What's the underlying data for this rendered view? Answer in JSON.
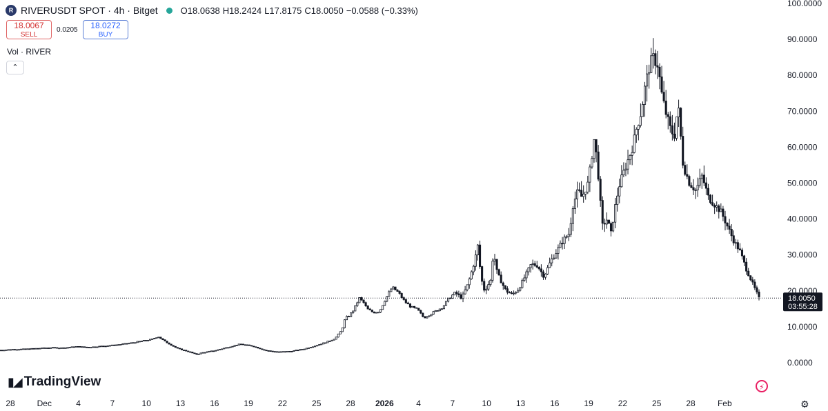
{
  "header": {
    "symbol": "RIVERUSDT SPOT · 4h · Bitget",
    "symbol_icon": "River-coin-icon",
    "status_color": "#26a69a",
    "open_label": "O",
    "open": "18.0638",
    "high_label": "H",
    "high": "18.2424",
    "low_label": "L",
    "low": "17.8175",
    "close_label": "C",
    "close": "18.0050",
    "change": "−0.0588 (−0.33%)"
  },
  "trade": {
    "sell_price": "18.0067",
    "sell_label": "SELL",
    "spread": "0.0205",
    "buy_price": "18.0272",
    "buy_label": "BUY"
  },
  "volume_label": "Vol · RIVER",
  "collapse_symbol": "⌃",
  "logo_text": "TradingView",
  "price_tag": {
    "price": "18.0050",
    "countdown": "03:55:28"
  },
  "chart_data": {
    "type": "candlestick",
    "title": "",
    "xlabel": "",
    "ylabel": "",
    "ylim": [
      0,
      100
    ],
    "y_ticks": [
      "0.0000",
      "10.0000",
      "20.0000",
      "30.0000",
      "40.0000",
      "50.0000",
      "60.0000",
      "70.0000",
      "80.0000",
      "90.0000",
      "100.0000"
    ],
    "x_ticks": [
      "28",
      "Dec",
      "4",
      "7",
      "10",
      "13",
      "16",
      "19",
      "22",
      "25",
      "28",
      "2026",
      "4",
      "7",
      "10",
      "13",
      "16",
      "19",
      "22",
      "25",
      "28",
      "Feb"
    ],
    "x_ticks_bold": [
      "2026"
    ],
    "current_price": 18.005,
    "grid": false,
    "colors": {
      "up": "#ffffff",
      "down": "#131722",
      "wick": "#131722"
    },
    "trajectory_note_keys": [
      "t",
      "price"
    ],
    "trajectory": [
      [
        0,
        3.5
      ],
      [
        1,
        3.7
      ],
      [
        2,
        3.8
      ],
      [
        3,
        4.0
      ],
      [
        4,
        4.2
      ],
      [
        5,
        4.1
      ],
      [
        6,
        4.5
      ],
      [
        7,
        4.3
      ],
      [
        8,
        4.6
      ],
      [
        9,
        4.9
      ],
      [
        10,
        5.3
      ],
      [
        11,
        5.9
      ],
      [
        12,
        6.5
      ],
      [
        12.5,
        7.3
      ],
      [
        13,
        6.0
      ],
      [
        14,
        4.0
      ],
      [
        15,
        3.0
      ],
      [
        15.5,
        2.3
      ],
      [
        16,
        2.8
      ],
      [
        17,
        3.4
      ],
      [
        18,
        4.3
      ],
      [
        19,
        5.2
      ],
      [
        20,
        4.6
      ],
      [
        21,
        3.4
      ],
      [
        22,
        3.0
      ],
      [
        23,
        3.2
      ],
      [
        24,
        3.8
      ],
      [
        25,
        4.8
      ],
      [
        26,
        6.0
      ],
      [
        26.5,
        6.8
      ],
      [
        27,
        9.0
      ],
      [
        27.3,
        12.5
      ],
      [
        27.6,
        13.0
      ],
      [
        28,
        15.0
      ],
      [
        28.4,
        18.0
      ],
      [
        28.8,
        16.5
      ],
      [
        29,
        15.0
      ],
      [
        29.5,
        14.0
      ],
      [
        30,
        14.3
      ],
      [
        30.5,
        18.0
      ],
      [
        31,
        21.0
      ],
      [
        31.5,
        19.5
      ],
      [
        32,
        17.0
      ],
      [
        32.5,
        15.5
      ],
      [
        33,
        14.8
      ],
      [
        33.5,
        12.5
      ],
      [
        34,
        13.5
      ],
      [
        34.5,
        14.5
      ],
      [
        35,
        15.5
      ],
      [
        35.5,
        18.0
      ],
      [
        36,
        19.5
      ],
      [
        36.5,
        18.0
      ],
      [
        37,
        22.0
      ],
      [
        37.5,
        28.0
      ],
      [
        37.8,
        33.0
      ],
      [
        38,
        24.0
      ],
      [
        38.3,
        20.0
      ],
      [
        38.8,
        23.0
      ],
      [
        39,
        31.0
      ],
      [
        39.3,
        25.0
      ],
      [
        39.7,
        22.0
      ],
      [
        40,
        20.0
      ],
      [
        40.5,
        19.0
      ],
      [
        41,
        20.5
      ],
      [
        41.5,
        24.0
      ],
      [
        42,
        27.5
      ],
      [
        42.5,
        27.0
      ],
      [
        43,
        24.0
      ],
      [
        43.5,
        28.0
      ],
      [
        44,
        31.0
      ],
      [
        44.5,
        34.0
      ],
      [
        45,
        36.0
      ],
      [
        45.3,
        44.0
      ],
      [
        45.7,
        48.0
      ],
      [
        46,
        46.0
      ],
      [
        46.5,
        50.0
      ],
      [
        46.8,
        58.0
      ],
      [
        47,
        63.0
      ],
      [
        47.3,
        52.0
      ],
      [
        47.6,
        38.0
      ],
      [
        48,
        40.0
      ],
      [
        48.3,
        36.0
      ],
      [
        48.7,
        45.0
      ],
      [
        49,
        50.0
      ],
      [
        49.5,
        55.0
      ],
      [
        50,
        60.0
      ],
      [
        50.3,
        65.0
      ],
      [
        50.7,
        70.0
      ],
      [
        51,
        77.0
      ],
      [
        51.3,
        82.0
      ],
      [
        51.6,
        85.0
      ],
      [
        52,
        83.0
      ],
      [
        52.3,
        75.0
      ],
      [
        52.6,
        70.0
      ],
      [
        53,
        65.0
      ],
      [
        53.3,
        63.0
      ],
      [
        53.6,
        72.0
      ],
      [
        54,
        55.0
      ],
      [
        54.5,
        50.0
      ],
      [
        55,
        48.0
      ],
      [
        55.5,
        52.0
      ],
      [
        56,
        46.0
      ],
      [
        56.5,
        44.0
      ],
      [
        57,
        42.0
      ],
      [
        57.5,
        38.0
      ],
      [
        58,
        34.0
      ],
      [
        58.5,
        31.0
      ],
      [
        59,
        26.0
      ],
      [
        59.5,
        22.0
      ],
      [
        60,
        18.0
      ]
    ]
  }
}
